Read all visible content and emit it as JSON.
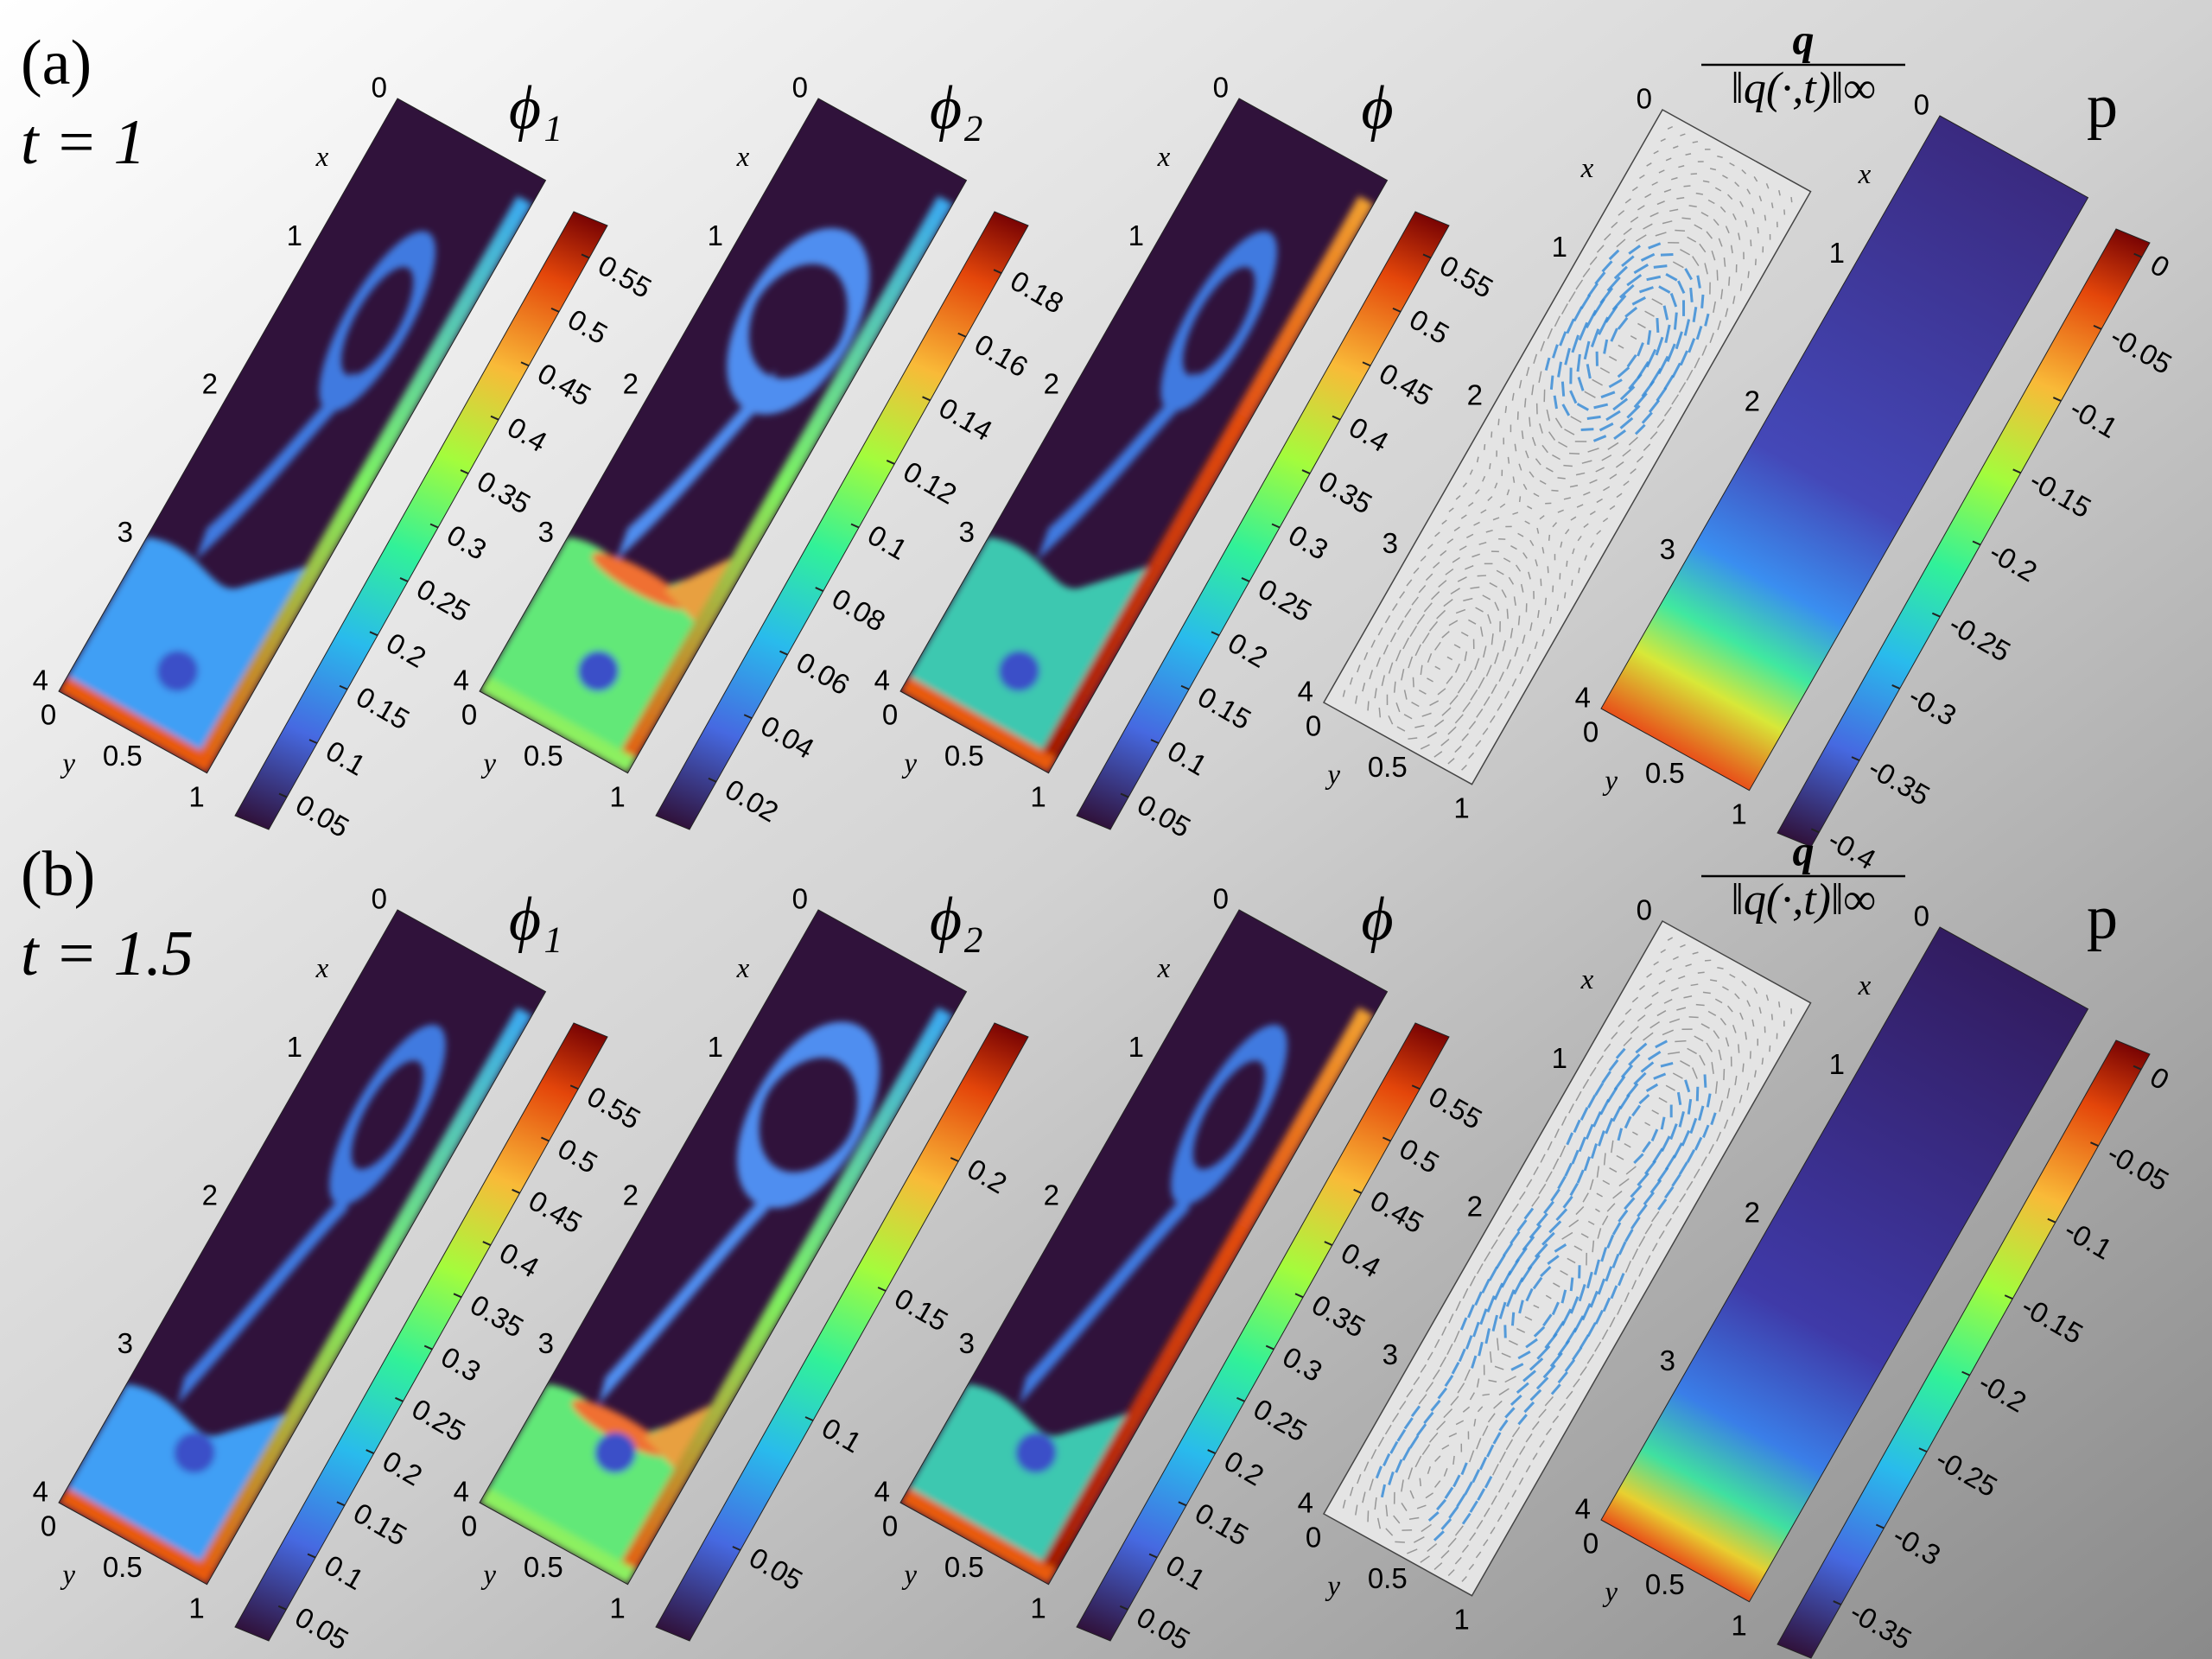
{
  "x_label": "x",
  "y_label": "y",
  "xlim": [
    0,
    4
  ],
  "ylim": [
    0,
    1
  ],
  "xticks": [
    0,
    1,
    2,
    3,
    4
  ],
  "yticks": [
    0,
    0.5,
    1
  ],
  "colormap": "turbo",
  "rows": [
    {
      "label": "(a)",
      "time": "t = 1",
      "panels": [
        {
          "type": "field",
          "title": "ϕ₁",
          "clim": [
            0.02,
            0.58
          ],
          "cticks": [
            0.05,
            0.1,
            0.15,
            0.2,
            0.25,
            0.3,
            0.35,
            0.4,
            0.45,
            0.5,
            0.55
          ]
        },
        {
          "type": "field",
          "title": "ϕ₂",
          "clim": [
            0.005,
            0.195
          ],
          "cticks": [
            0.02,
            0.04,
            0.06,
            0.08,
            0.1,
            0.12,
            0.14,
            0.16,
            0.18
          ]
        },
        {
          "type": "field",
          "title": "ϕ",
          "clim": [
            0.02,
            0.58
          ],
          "cticks": [
            0.05,
            0.1,
            0.15,
            0.2,
            0.25,
            0.3,
            0.35,
            0.4,
            0.45,
            0.5,
            0.55
          ]
        },
        {
          "type": "vector",
          "numerator": "q",
          "denominator": "‖q(·,t)‖∞"
        },
        {
          "type": "pressure",
          "title": "p",
          "clim": [
            -0.41,
            0.01
          ],
          "cticks": [
            0,
            -0.05,
            -0.1,
            -0.15,
            -0.2,
            -0.25,
            -0.3,
            -0.35,
            -0.4
          ]
        }
      ]
    },
    {
      "label": "(b)",
      "time": "t = 1.5",
      "panels": [
        {
          "type": "field",
          "title": "ϕ₁",
          "clim": [
            0.02,
            0.6
          ],
          "cticks": [
            0.05,
            0.1,
            0.15,
            0.2,
            0.25,
            0.3,
            0.35,
            0.4,
            0.45,
            0.5,
            0.55
          ]
        },
        {
          "type": "field",
          "title": "ϕ₂",
          "clim": [
            0.015,
            0.248
          ],
          "cticks": [
            0.05,
            0.1,
            0.15,
            0.2
          ]
        },
        {
          "type": "field",
          "title": "ϕ",
          "clim": [
            0.02,
            0.6
          ],
          "cticks": [
            0.05,
            0.1,
            0.15,
            0.2,
            0.25,
            0.3,
            0.35,
            0.4,
            0.45,
            0.5,
            0.55
          ]
        },
        {
          "type": "vector",
          "numerator": "q",
          "denominator": "‖q(·,t)‖∞"
        },
        {
          "type": "pressure",
          "title": "p",
          "clim": [
            -0.385,
            0.01
          ],
          "cticks": [
            0,
            -0.05,
            -0.1,
            -0.15,
            -0.2,
            -0.25,
            -0.3,
            -0.35
          ]
        }
      ]
    }
  ]
}
